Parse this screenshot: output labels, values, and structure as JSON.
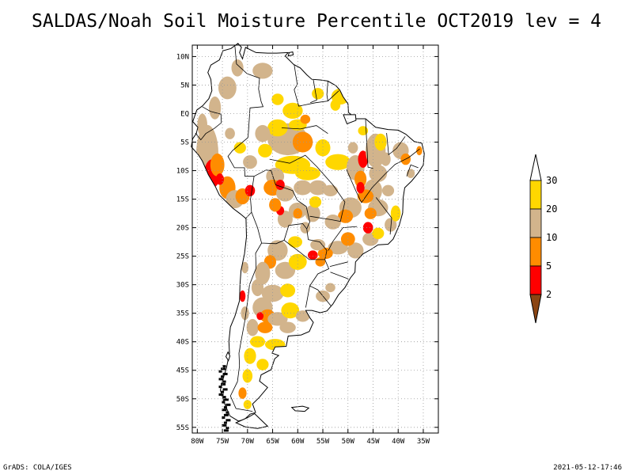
{
  "title": "SALDAS/Noah Soil Moisture Percentile OCT2019 lev = 4",
  "footer": {
    "left": "GrADS: COLA/IGES",
    "right": "2021-05-12-17:46"
  },
  "map": {
    "lon_range": [
      -81,
      -32
    ],
    "lat_range": [
      -56,
      12
    ],
    "x_ticks": [
      "80W",
      "75W",
      "70W",
      "65W",
      "60W",
      "55W",
      "50W",
      "45W",
      "40W",
      "35W"
    ],
    "x_tick_values": [
      -80,
      -75,
      -70,
      -65,
      -60,
      -55,
      -50,
      -45,
      -40,
      -35
    ],
    "y_ticks": [
      "10N",
      "5N",
      "EQ",
      "5S",
      "10S",
      "15S",
      "20S",
      "25S",
      "30S",
      "35S",
      "40S",
      "45S",
      "50S",
      "55S"
    ],
    "y_tick_values": [
      10,
      5,
      0,
      -5,
      -10,
      -15,
      -20,
      -25,
      -30,
      -35,
      -40,
      -45,
      -50,
      -55
    ],
    "grid": true
  },
  "legend": {
    "labels": [
      "2",
      "5",
      "10",
      "20",
      "30"
    ],
    "bins": [
      {
        "color": "#8b4513"
      },
      {
        "color": "#ff0000"
      },
      {
        "color": "#ff8c00"
      },
      {
        "color": "#d2b48c"
      },
      {
        "color": "#ffd700"
      },
      {
        "color": "#ffffff"
      }
    ]
  },
  "colors": {
    "lt2": "#8b4513",
    "p2_5": "#ff0000",
    "p5_10": "#ff8c00",
    "p10_20": "#d2b48c",
    "p20_30": "#ffd700",
    "gt30": "#ffffff"
  }
}
